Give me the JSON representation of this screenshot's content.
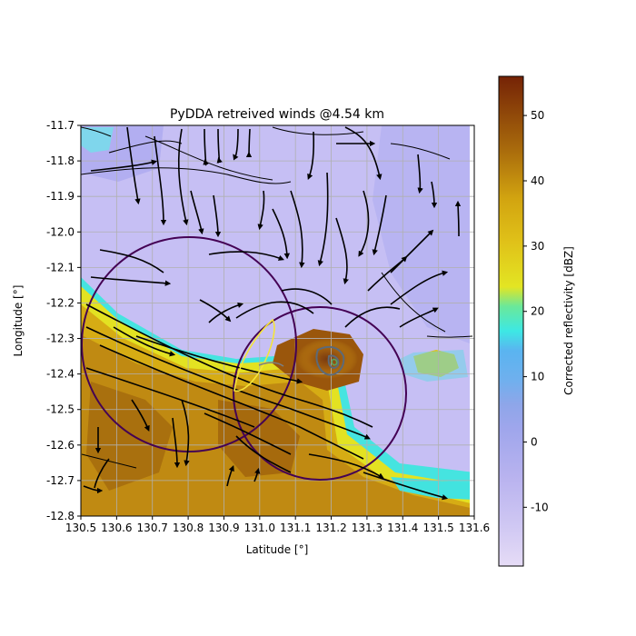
{
  "chart_data": {
    "type": "heatmap",
    "title": "PyDDA retreived winds @4.54 km",
    "xlabel": "Latitude [°]",
    "ylabel": "Longitude [°]",
    "xlim": [
      130.5,
      131.6
    ],
    "ylim": [
      -12.8,
      -11.7
    ],
    "x_ticks": [
      "130.5",
      "130.6",
      "130.7",
      "130.8",
      "130.9",
      "131.0",
      "131.1",
      "131.2",
      "131.3",
      "131.4",
      "131.5",
      "131.6"
    ],
    "y_ticks": [
      "-11.7",
      "-11.8",
      "-11.9",
      "-12.0",
      "-12.1",
      "-12.2",
      "-12.3",
      "-12.4",
      "-12.5",
      "-12.6",
      "-12.7",
      "-12.8"
    ],
    "grid": true,
    "overlays": [
      "streamlines",
      "radar range rings",
      "updraft contours"
    ],
    "range_rings": [
      {
        "center": [
          130.8,
          -12.26
        ],
        "radius_deg": 0.245,
        "color": "#440154"
      },
      {
        "center": [
          131.19,
          -12.43
        ],
        "radius_deg": 0.24,
        "color": "#440154"
      }
    ],
    "colorbar": {
      "label": "Corrected reflectivity [dBZ]",
      "range": [
        -19,
        56
      ],
      "ticks": [
        "-10",
        "0",
        "10",
        "20",
        "30",
        "40",
        "50"
      ],
      "colormap": [
        "#e6dcf6",
        "#b9b3ef",
        "#8ea6e9",
        "#5ab4f0",
        "#3de8e4",
        "#e3e523",
        "#d2a410",
        "#a96b0c",
        "#752306"
      ]
    }
  }
}
